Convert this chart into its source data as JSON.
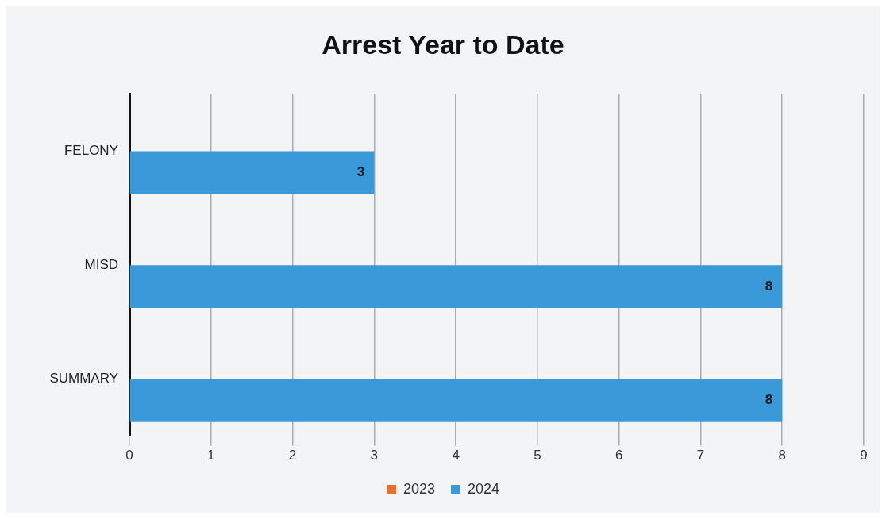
{
  "chart_data": {
    "type": "bar",
    "orientation": "horizontal",
    "title": "Arrest Year to Date",
    "categories": [
      "FELONY",
      "MISD",
      "SUMMARY"
    ],
    "series": [
      {
        "name": "2023",
        "color": "#e8702a",
        "values": [
          null,
          null,
          null
        ]
      },
      {
        "name": "2024",
        "color": "#3a9ad9",
        "values": [
          3,
          8,
          8
        ]
      }
    ],
    "xlim": [
      0,
      9
    ],
    "xticks": [
      0,
      1,
      2,
      3,
      4,
      5,
      6,
      7,
      8,
      9
    ],
    "grid": "x",
    "legend": "bottom",
    "data_labels": true
  }
}
